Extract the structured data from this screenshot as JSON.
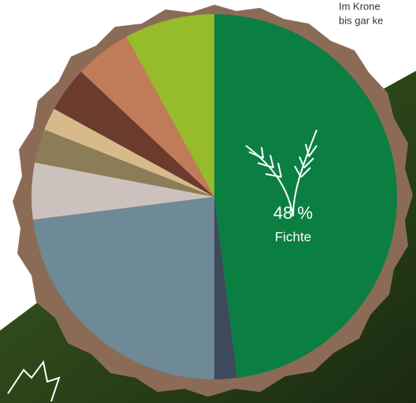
{
  "chart_data": {
    "type": "pie",
    "categories": [
      "Fichte",
      null,
      null,
      null,
      null,
      null,
      null,
      null,
      null
    ],
    "values": [
      48,
      2,
      23,
      5,
      3,
      2,
      4,
      5,
      8
    ],
    "value_labels": [
      "48 %",
      null,
      null,
      null,
      null,
      null,
      null,
      null,
      null
    ],
    "colors": [
      "#0b7f42",
      "#3d4a5c",
      "#6e8a96",
      "#cdc1bd",
      "#8b7d57",
      "#d8b98a",
      "#6b3b2e",
      "#c27b59",
      "#96bb2b"
    ],
    "start_angle": 0,
    "direction": "clockwise"
  },
  "notes": [
    "Im Krone",
    "bis gar ke"
  ]
}
